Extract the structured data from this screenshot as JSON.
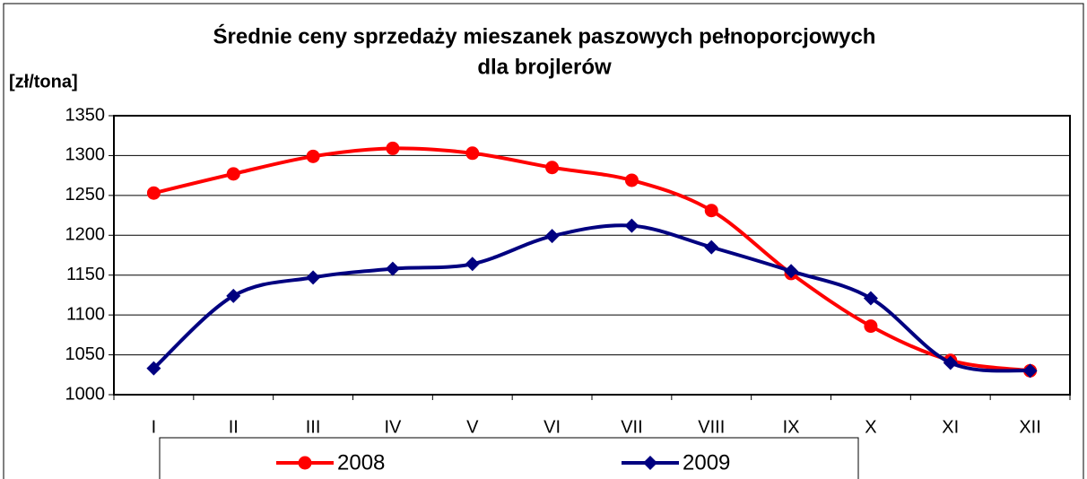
{
  "chart_data": {
    "type": "line",
    "title": "Średnie ceny sprzedaży mieszanek paszowych pełnoporcjowych",
    "subtitle": "dla brojlerów",
    "y_label": "[zł/tona]",
    "categories": [
      "I",
      "II",
      "III",
      "IV",
      "V",
      "VI",
      "VII",
      "VIII",
      "IX",
      "X",
      "XI",
      "XII"
    ],
    "series": [
      {
        "name": "2008",
        "color": "#ff0000",
        "marker": "circle",
        "values": [
          1253,
          1277,
          1299,
          1309,
          1303,
          1285,
          1269,
          1231,
          1152,
          1086,
          1043,
          1030
        ]
      },
      {
        "name": "2009",
        "color": "#000080",
        "marker": "diamond",
        "values": [
          1033,
          1124,
          1147,
          1158,
          1164,
          1199,
          1212,
          1185,
          1155,
          1121,
          1040,
          1030
        ]
      }
    ],
    "ylim": [
      1000,
      1350
    ],
    "yticks": [
      1000,
      1050,
      1100,
      1150,
      1200,
      1250,
      1300,
      1350
    ],
    "grid": true,
    "smooth": true,
    "legend": "bottom"
  }
}
